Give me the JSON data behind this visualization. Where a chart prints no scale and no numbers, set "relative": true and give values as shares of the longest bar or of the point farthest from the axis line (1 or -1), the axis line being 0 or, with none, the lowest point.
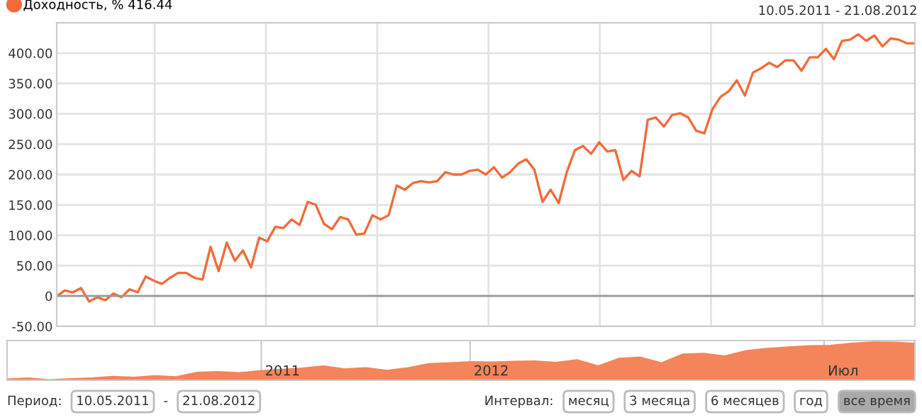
{
  "chart_data": [
    {
      "type": "line",
      "subtitle": "10.05.2011 - 21.08.2012",
      "legend": "top left",
      "grid": true,
      "marker": "none",
      "line_style": "solid",
      "categories": [
        null,
        null,
        null,
        null,
        null,
        null,
        null,
        null,
        null,
        null,
        null,
        null,
        null,
        null,
        null,
        null,
        null,
        null,
        null,
        null,
        null,
        null,
        null,
        null,
        null,
        null,
        null,
        null,
        null,
        null,
        null,
        null,
        null,
        null,
        null,
        null,
        null,
        null,
        null,
        null,
        null,
        null,
        null,
        null,
        null,
        null,
        null,
        null,
        null,
        null,
        null,
        null,
        null,
        null,
        null,
        null,
        null,
        null,
        null,
        null,
        null,
        null,
        null,
        null,
        null,
        null,
        null,
        null,
        null,
        null,
        null,
        null,
        null,
        null,
        null,
        null,
        null,
        null,
        null,
        null,
        null,
        null,
        null,
        null,
        null,
        null,
        null,
        null,
        null,
        null,
        null,
        null,
        null,
        null,
        null,
        null,
        null,
        null,
        null,
        null,
        null,
        null,
        null,
        null,
        null,
        null,
        null
      ],
      "series": [
        {
          "name": "Доходность, % 416.44",
          "color": "#f26b3a",
          "values": [
            0,
            9,
            6,
            13,
            -9,
            -2,
            -7,
            4,
            -2,
            11,
            6,
            32,
            25,
            20,
            30,
            38,
            38,
            30,
            27,
            81,
            41,
            88,
            58,
            75,
            47,
            96,
            90,
            114,
            112,
            126,
            117,
            155,
            150,
            119,
            110,
            130,
            126,
            101,
            103,
            133,
            126,
            133,
            182,
            175,
            186,
            189,
            187,
            189,
            204,
            200,
            200,
            206,
            208,
            200,
            212,
            195,
            204,
            218,
            225,
            208,
            155,
            175,
            153,
            204,
            240,
            247,
            234,
            253,
            238,
            240,
            191,
            206,
            197,
            290,
            294,
            279,
            298,
            301,
            294,
            272,
            268,
            308,
            328,
            337,
            355,
            330,
            368,
            375,
            384,
            377,
            388,
            388,
            371,
            393,
            393,
            407,
            390,
            420,
            422,
            431,
            420,
            429,
            411,
            424,
            422,
            416,
            416
          ]
        }
      ],
      "ylim": [
        -50,
        450
      ],
      "yticks": [
        {
          "value": -50,
          "label": "-50.00"
        },
        {
          "value": 0,
          "label": "0"
        },
        {
          "value": 50,
          "label": "50.00"
        },
        {
          "value": 100,
          "label": "100.00"
        },
        {
          "value": 150,
          "label": "150.00"
        },
        {
          "value": 200,
          "label": "200.00"
        },
        {
          "value": 250,
          "label": "250.00"
        },
        {
          "value": 300,
          "label": "300.00"
        },
        {
          "value": 350,
          "label": "350.00"
        },
        {
          "value": 400,
          "label": "400.00"
        },
        {
          "value": 450,
          "label": null
        }
      ],
      "ref_lines": [
        {
          "axis": "y",
          "value": 0,
          "color": "#999999"
        }
      ]
    },
    {
      "type": "area",
      "relative": true,
      "categories": [
        null,
        null,
        null,
        null,
        null,
        null,
        null,
        null,
        null,
        null,
        null,
        null,
        null,
        null,
        null,
        null,
        null,
        null,
        null,
        null,
        null,
        null,
        null,
        null,
        null,
        null,
        null,
        null,
        null,
        null,
        null,
        null,
        null,
        null,
        null,
        null,
        null,
        null,
        null,
        null,
        null,
        null,
        null,
        null
      ],
      "series": [
        {
          "color": "#f4845a",
          "values": [
            0.02,
            0.05,
            0,
            0.03,
            0.05,
            0.09,
            0.07,
            0.11,
            0.08,
            0.2,
            0.22,
            0.19,
            0.24,
            0.28,
            0.31,
            0.37,
            0.29,
            0.32,
            0.25,
            0.32,
            0.43,
            0.45,
            0.48,
            0.47,
            0.49,
            0.5,
            0.46,
            0.53,
            0.37,
            0.57,
            0.6,
            0.45,
            0.68,
            0.7,
            0.63,
            0.77,
            0.83,
            0.87,
            0.9,
            0.91,
            0.97,
            1,
            0.995,
            0.97
          ]
        }
      ],
      "annotations": [
        "2011",
        "2012",
        "Июл",
        "Период:",
        "10.05.2011",
        "-",
        "21.08.2012",
        "Интервал:",
        "месяц",
        "3 месяца",
        "6 месяцев",
        "год",
        "все время"
      ]
    }
  ]
}
